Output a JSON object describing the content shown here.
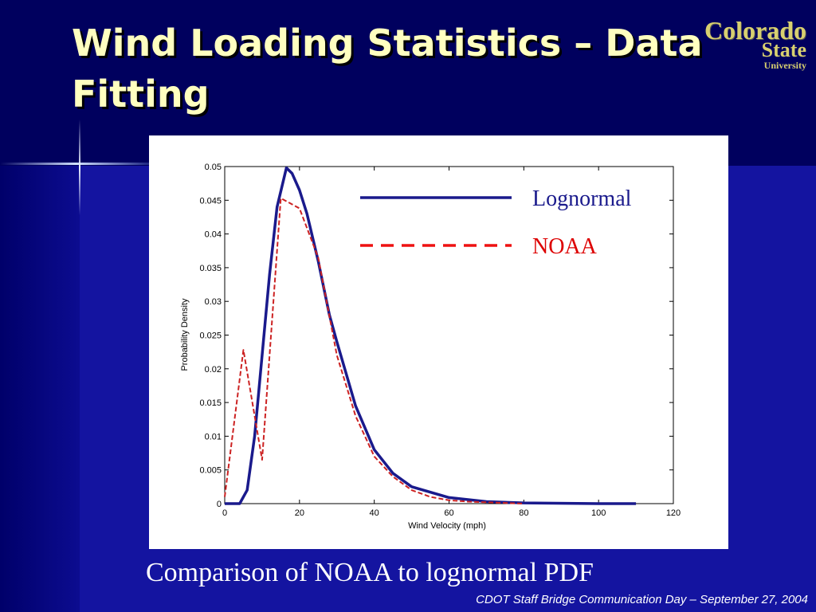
{
  "slide": {
    "title": "Wind Loading Statistics – Data Fitting",
    "logo_text": [
      "Colorado",
      "State",
      "University"
    ],
    "caption": "Comparison of NOAA to lognormal PDF",
    "footer": "CDOT Staff Bridge Communication Day – September 27, 2004"
  },
  "chart_data": {
    "type": "line",
    "title": "",
    "xlabel": "Wind Velocity (mph)",
    "ylabel": "Probability Density",
    "xlim": [
      0,
      120
    ],
    "ylim": [
      0,
      0.05
    ],
    "xticks": [
      "0",
      "20",
      "40",
      "60",
      "80",
      "100",
      "120"
    ],
    "yticks": [
      "0",
      "0.005",
      "0.01",
      "0.015",
      "0.02",
      "0.025",
      "0.03",
      "0.035",
      "0.04",
      "0.045",
      "0.05"
    ],
    "legend_position": "top-right",
    "grid": false,
    "series": [
      {
        "name": "Lognormal",
        "color": "#1a1a8c",
        "style": "solid",
        "x": [
          0,
          4,
          6,
          8,
          10,
          12,
          14,
          16.5,
          18,
          20,
          22,
          25,
          28,
          30,
          35,
          40,
          45,
          50,
          60,
          70,
          80,
          100,
          110
        ],
        "y": [
          0,
          0,
          0.002,
          0.01,
          0.022,
          0.034,
          0.044,
          0.0498,
          0.049,
          0.0465,
          0.043,
          0.036,
          0.028,
          0.024,
          0.0145,
          0.008,
          0.0045,
          0.0025,
          0.0009,
          0.0003,
          0.0001,
          0,
          0
        ]
      },
      {
        "name": "NOAA",
        "color": "#cc2222",
        "style": "dashed",
        "x": [
          0,
          5,
          10,
          15,
          20,
          25,
          30,
          35,
          40,
          45,
          50,
          55,
          60,
          65,
          70,
          75,
          80
        ],
        "y": [
          0.001,
          0.0228,
          0.0065,
          0.0453,
          0.0438,
          0.0365,
          0.022,
          0.013,
          0.007,
          0.004,
          0.002,
          0.001,
          0.0005,
          0.0003,
          0.0002,
          0.0001,
          0
        ]
      }
    ]
  }
}
